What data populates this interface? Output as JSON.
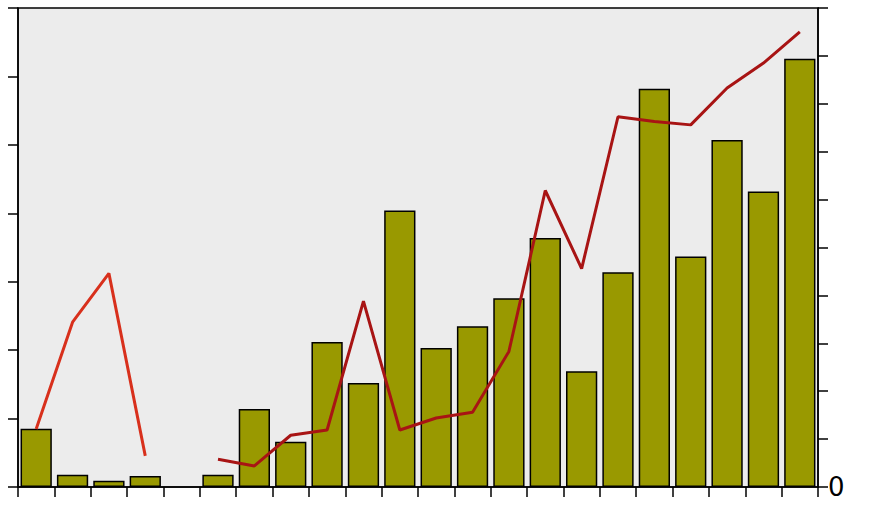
{
  "chart_data": {
    "type": "bar",
    "categories": [
      null,
      null,
      null,
      null,
      null,
      null,
      null,
      null,
      null,
      null,
      null,
      null,
      null,
      null,
      null,
      null,
      null,
      null,
      null,
      null,
      null,
      null
    ],
    "series": [
      {
        "type": "bar",
        "color": "#999900",
        "values": [
          0.85,
          0.18,
          0.09,
          0.16,
          null,
          0.18,
          1.14,
          0.66,
          2.12,
          1.52,
          4.04,
          2.03,
          2.35,
          2.76,
          3.64,
          1.69,
          3.14,
          5.82,
          3.37,
          5.07,
          4.32,
          6.26
        ]
      },
      {
        "type": "line",
        "axis": "y2",
        "color": "#d8301c",
        "values": [
          1.21,
          3.44,
          4.46,
          0.65,
          null,
          null,
          null,
          null,
          null,
          null,
          null,
          null,
          null,
          null,
          null,
          null,
          null,
          null,
          null,
          null,
          null,
          null
        ]
      },
      {
        "type": "line",
        "axis": "y2",
        "color": "#a81414",
        "values": [
          null,
          null,
          null,
          null,
          null,
          0.58,
          0.44,
          1.08,
          1.19,
          3.88,
          1.19,
          1.44,
          1.56,
          2.83,
          6.19,
          4.56,
          7.73,
          7.63,
          7.56,
          8.33,
          8.85,
          9.5
        ]
      }
    ],
    "ylim": [
      0,
      7
    ],
    "yticks": [
      0,
      1,
      2,
      3,
      4,
      5,
      6,
      7
    ],
    "y2lim": [
      0,
      10
    ],
    "y2ticks": [
      0,
      1,
      2,
      3,
      4,
      5,
      6,
      7,
      8,
      9,
      10
    ],
    "grid": false,
    "tick_labels": false,
    "annotations": [
      {
        "text": "0",
        "axis": "y2",
        "y": 0
      }
    ]
  }
}
